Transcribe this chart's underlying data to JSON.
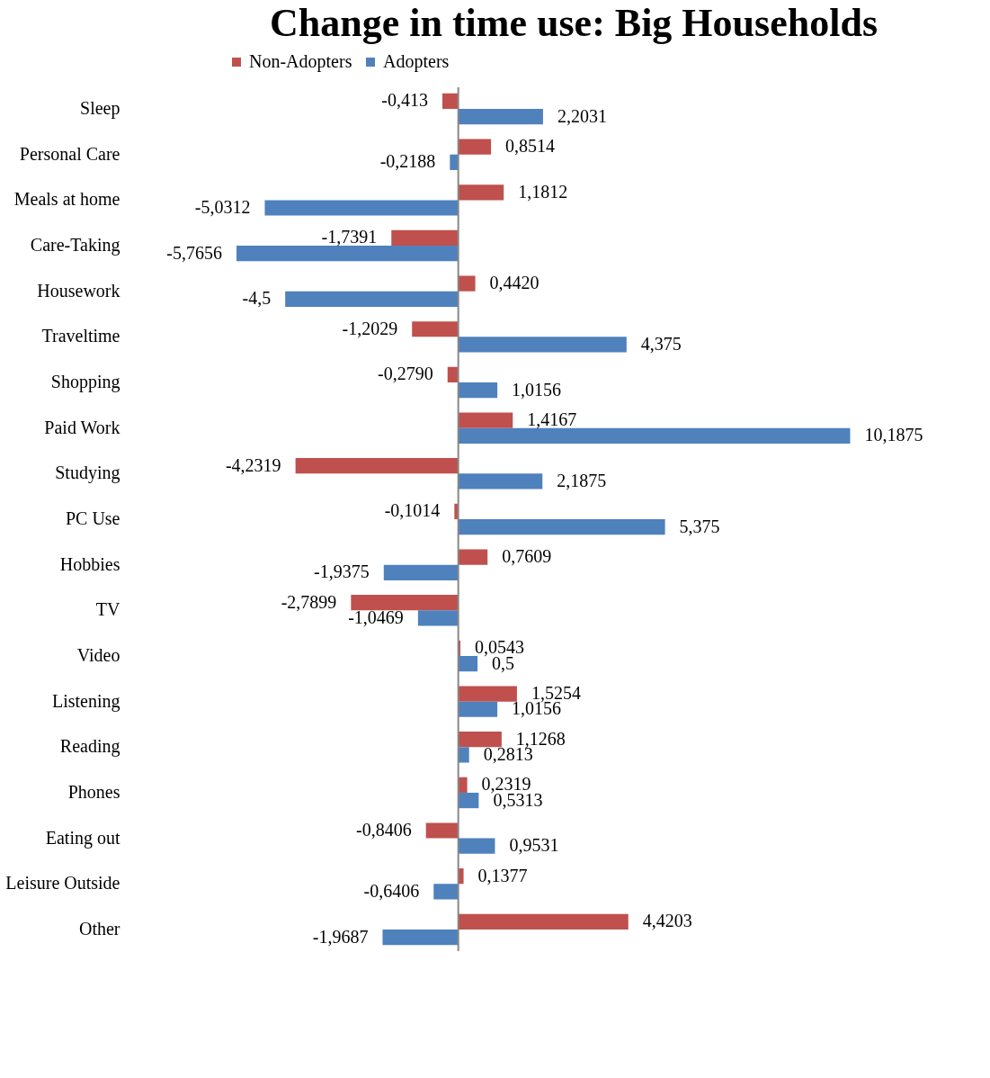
{
  "chart_data": {
    "type": "bar",
    "orientation": "horizontal",
    "title": "Change in time use: Big Households",
    "categories": [
      "Sleep",
      "Personal Care",
      "Meals at home",
      "Care-Taking",
      "Housework",
      "Traveltime",
      "Shopping",
      "Paid Work",
      "Studying",
      "PC Use",
      "Hobbies",
      "TV",
      "Video",
      "Listening",
      "Reading",
      "Phones",
      "Eating out",
      "Leisure Outside",
      "Other"
    ],
    "series": [
      {
        "name": "Non-Adopters",
        "color": "#c0504d",
        "values": [
          -0.413,
          0.8514,
          1.1812,
          -1.7391,
          0.442,
          -1.2029,
          -0.279,
          1.4167,
          -4.2319,
          -0.1014,
          0.7609,
          -2.7899,
          0.0543,
          1.5254,
          1.1268,
          0.2319,
          -0.8406,
          0.1377,
          4.4203
        ],
        "value_labels": [
          "-0,413",
          "0,8514",
          "1,1812",
          "-1,7391",
          "0,4420",
          "-1,2029",
          "-0,2790",
          "1,4167",
          "-4,2319",
          "-0,1014",
          "0,7609",
          "-2,7899",
          "0,0543",
          "1,5254",
          "1,1268",
          "0,2319",
          "-0,8406",
          "0,1377",
          "4,4203"
        ]
      },
      {
        "name": "Adopters",
        "color": "#4f81bd",
        "values": [
          2.2031,
          -0.2188,
          -5.0312,
          -5.7656,
          -4.5,
          4.375,
          1.0156,
          10.1875,
          2.1875,
          5.375,
          -1.9375,
          -1.0469,
          0.5,
          1.0156,
          0.2813,
          0.5313,
          0.9531,
          -0.6406,
          -1.9687
        ],
        "value_labels": [
          "2,2031",
          "-0,2188",
          "-5,0312",
          "-5,7656",
          "-4,5",
          "4,375",
          "1,0156",
          "10,1875",
          "2,1875",
          "5,375",
          "-1,9375",
          "-1,0469",
          "0,5",
          "1,0156",
          "0,2813",
          "0,5313",
          "0,9531",
          "-0,6406",
          "-1,9687"
        ]
      }
    ],
    "tick_labels": "y",
    "grid": false,
    "legend": "top"
  }
}
